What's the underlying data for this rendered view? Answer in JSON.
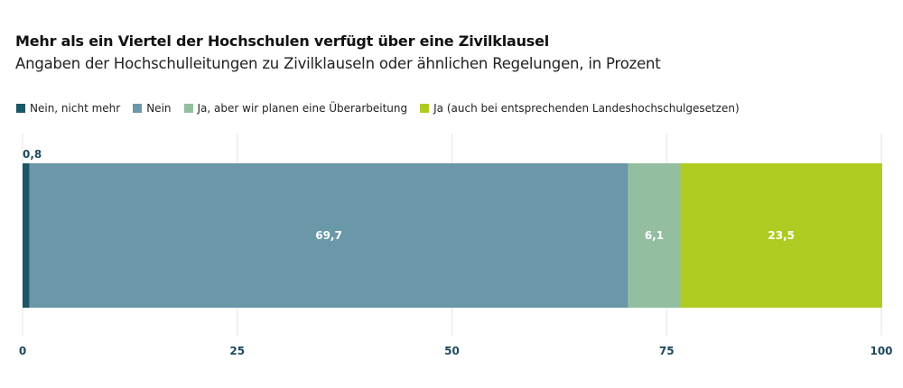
{
  "header": {
    "title": "Mehr als ein Viertel der Hochschulen verfügt über eine Zivilklausel",
    "subtitle": "Angaben der Hochschulleitungen zu Zivilklauseln oder ähnlichen Regelungen, in Prozent"
  },
  "chart_data": {
    "type": "bar",
    "orientation": "horizontal",
    "stacked": true,
    "title": "Mehr als ein Viertel der Hochschulen verfügt über eine Zivilklausel",
    "subtitle": "Angaben der Hochschulleitungen zu Zivilklauseln oder ähnlichen Regelungen, in Prozent",
    "categories": [
      ""
    ],
    "series": [
      {
        "name": "Nein, nicht mehr",
        "values": [
          0.8
        ],
        "label": "0,8",
        "color": "#1c5667",
        "label_color": "#1c4a5c",
        "label_position": "above"
      },
      {
        "name": "Nein",
        "values": [
          69.7
        ],
        "label": "69,7",
        "color": "#6a98a8",
        "label_color": "#ffffff",
        "label_position": "center"
      },
      {
        "name": "Ja, aber wir planen eine Überarbeitung",
        "values": [
          6.1
        ],
        "label": "6,1",
        "color": "#93bea0",
        "label_color": "#ffffff",
        "label_position": "center"
      },
      {
        "name": "Ja (auch bei entsprechenden Landeshochschulgesetzen)",
        "values": [
          23.5
        ],
        "label": "23,5",
        "color": "#aecb22",
        "label_color": "#ffffff",
        "label_position": "center"
      }
    ],
    "xlim": [
      0,
      100
    ],
    "xticks": [
      0,
      25,
      50,
      75,
      100
    ],
    "xtick_labels": [
      "0",
      "25",
      "50",
      "75",
      "100"
    ],
    "grid": true,
    "legend_position": "top-left",
    "xlabel": "",
    "ylabel": ""
  }
}
